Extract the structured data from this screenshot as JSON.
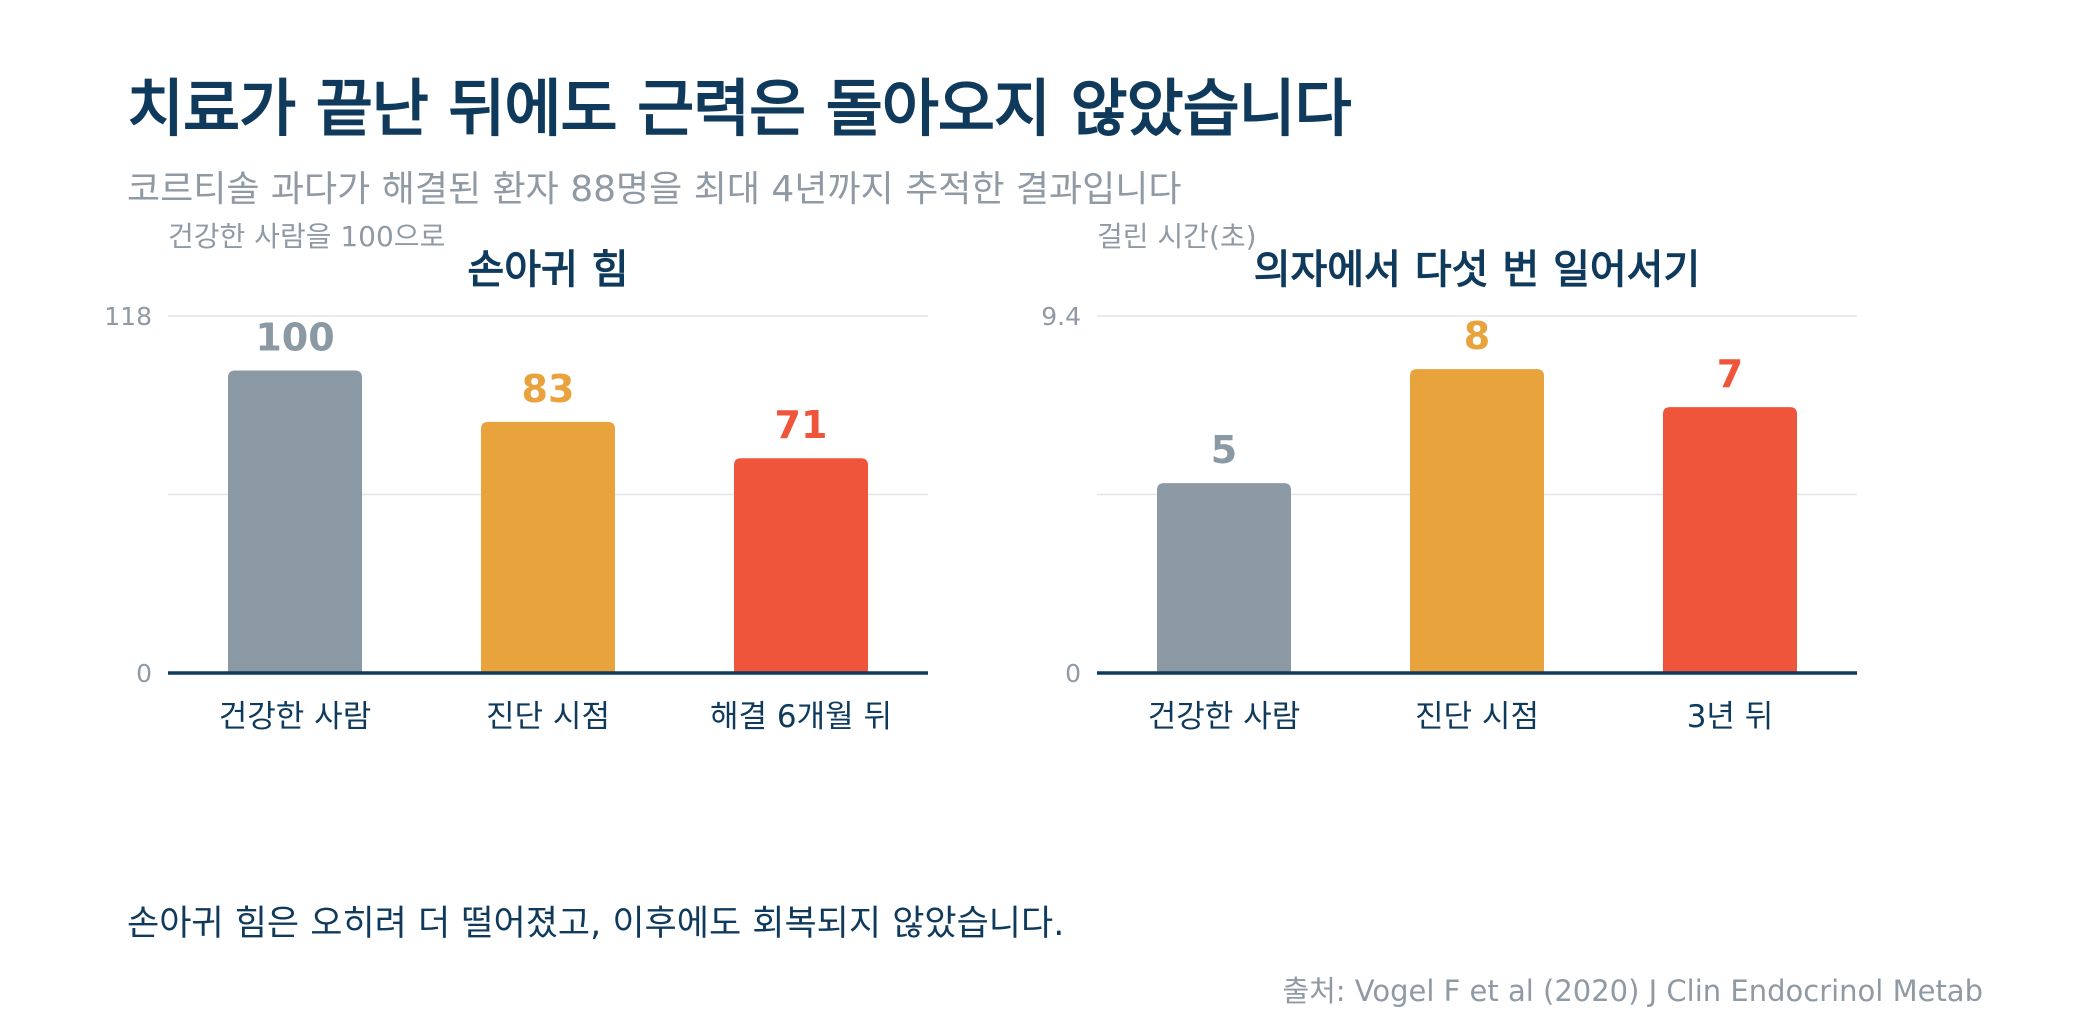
{
  "header": {
    "title": "치료가 끝난 뒤에도 근력은 돌아오지 않았습니다",
    "subtitle": "코르티솔 과다가 해결된 환자 88명을 최대 4년까지 추적한 결과입니다"
  },
  "chart_data": [
    {
      "type": "bar",
      "title": "손아귀 힘",
      "ylabel": "건강한 사람을 100으로",
      "categories": [
        "건강한 사람",
        "진단 시점",
        "해결 6개월 뒤"
      ],
      "values": [
        100,
        83,
        71
      ],
      "value_labels": [
        "100",
        "83",
        "71"
      ],
      "colors": [
        "#8b99a4",
        "#e8a33d",
        "#ef553b"
      ],
      "ylim": [
        0,
        118
      ],
      "yticks": [
        "0",
        "118"
      ],
      "grid": true
    },
    {
      "type": "bar",
      "title": "의자에서 다섯 번 일어서기",
      "ylabel": "걸린 시간(초)",
      "categories": [
        "건강한 사람",
        "진단 시점",
        "3년 뒤"
      ],
      "values": [
        5,
        8,
        7
      ],
      "value_labels": [
        "5",
        "8",
        "7"
      ],
      "colors": [
        "#8b99a4",
        "#e8a33d",
        "#ef553b"
      ],
      "ylim": [
        0,
        9.4
      ],
      "yticks": [
        "0",
        "9.4"
      ],
      "grid": true
    }
  ],
  "footer": {
    "conclusion": "손아귀 힘은 오히려 더 떨어졌고, 이후에도 회복되지 않았습니다.",
    "source": "출처: Vogel F et al (2020) J Clin Endocrinol Metab"
  }
}
